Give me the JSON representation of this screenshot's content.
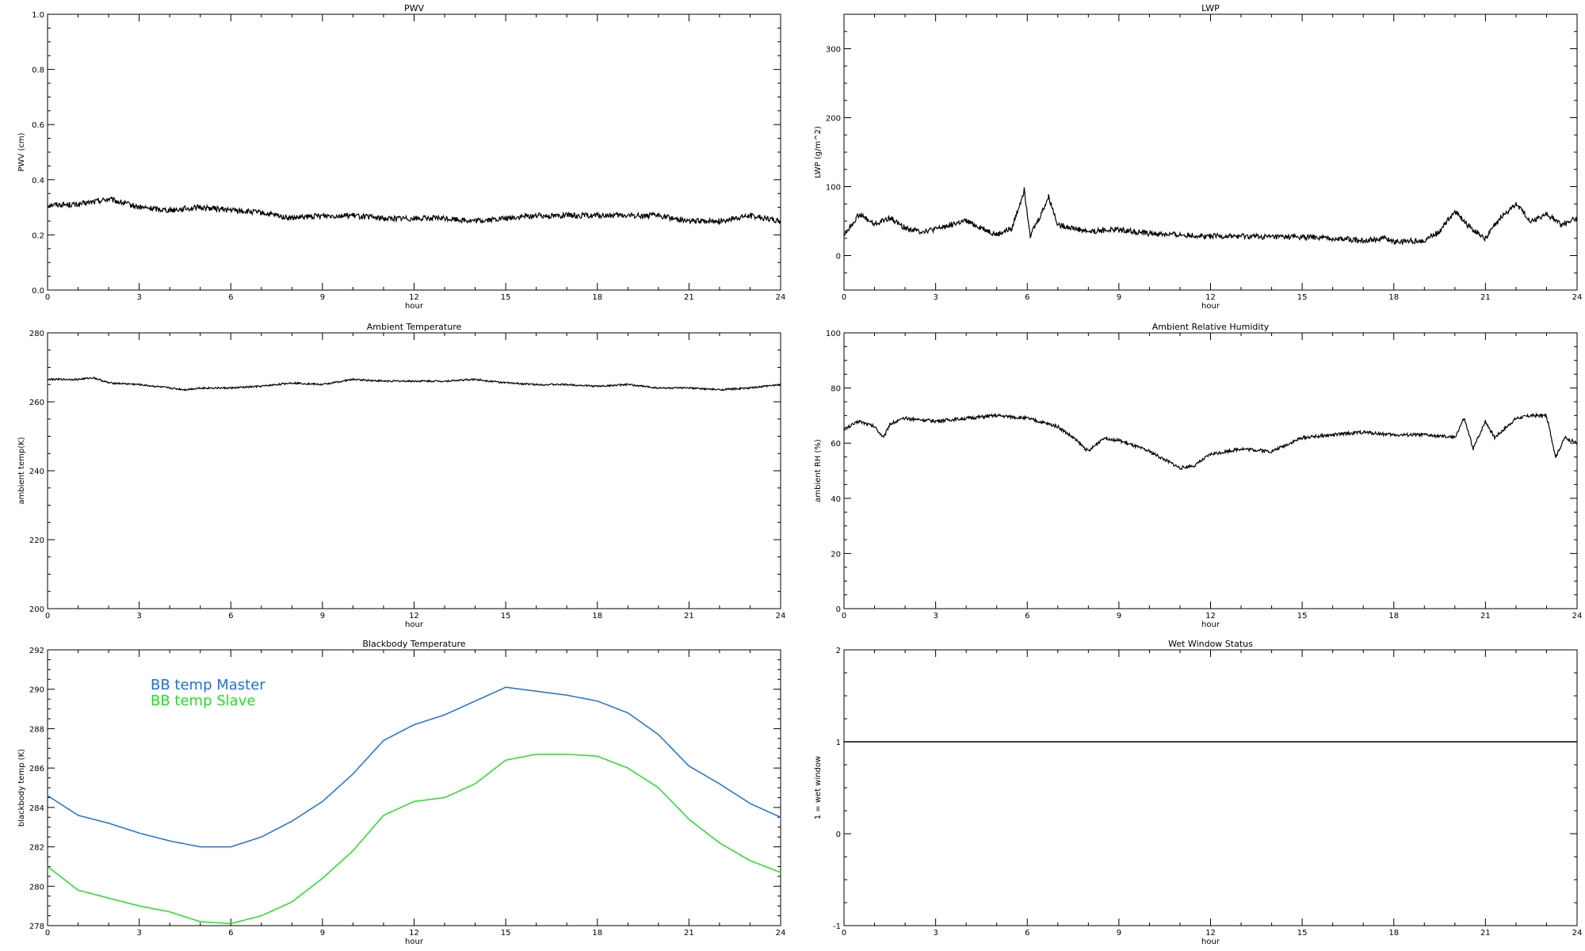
{
  "chart_data": [
    {
      "type": "line",
      "title": "PWV",
      "xlabel": "hour",
      "ylabel": "PWV (cm)",
      "xlim": [
        0,
        24
      ],
      "ylim": [
        0.0,
        1.0
      ],
      "xticks": [
        0,
        3,
        6,
        9,
        12,
        15,
        18,
        21,
        24
      ],
      "xtick_labels": [
        "0",
        "3",
        "6",
        "9",
        "12",
        "15",
        "18",
        "21",
        "24"
      ],
      "yticks": [
        0.0,
        0.2,
        0.4,
        0.6,
        0.8,
        1.0
      ],
      "ytick_labels": [
        "0.0",
        "0.2",
        "0.4",
        "0.6",
        "0.8",
        "1.0"
      ],
      "grid": false,
      "series": [
        {
          "color": "#000000",
          "noise": 0.01,
          "x": [
            0,
            1,
            2,
            3,
            4,
            5,
            6,
            7,
            8,
            9,
            10,
            11,
            12,
            13,
            14,
            15,
            16,
            17,
            18,
            19,
            20,
            21,
            22,
            23,
            24
          ],
          "y": [
            0.31,
            0.31,
            0.33,
            0.3,
            0.29,
            0.3,
            0.29,
            0.28,
            0.26,
            0.27,
            0.27,
            0.26,
            0.26,
            0.26,
            0.25,
            0.26,
            0.27,
            0.27,
            0.27,
            0.27,
            0.27,
            0.25,
            0.25,
            0.27,
            0.25
          ]
        }
      ]
    },
    {
      "type": "line",
      "title": "LWP",
      "xlabel": "hour",
      "ylabel": "LWP (g/m^2)",
      "xlim": [
        0,
        24
      ],
      "ylim": [
        -50,
        350
      ],
      "xticks": [
        0,
        3,
        6,
        9,
        12,
        15,
        18,
        21,
        24
      ],
      "xtick_labels": [
        "0",
        "3",
        "6",
        "9",
        "12",
        "15",
        "18",
        "21",
        "24"
      ],
      "yticks": [
        0,
        100,
        200,
        300
      ],
      "ytick_labels": [
        "0",
        "100",
        "200",
        "300"
      ],
      "grid": false,
      "series": [
        {
          "color": "#000000",
          "noise": 4,
          "x": [
            0,
            0.5,
            1,
            1.5,
            2,
            2.5,
            3,
            3.5,
            4,
            4.5,
            5,
            5.5,
            5.9,
            6.1,
            6.4,
            6.7,
            7,
            7.5,
            8,
            9,
            10,
            11,
            12,
            13,
            14,
            15,
            16,
            17,
            17.7,
            18,
            19,
            19.5,
            20,
            20.5,
            21,
            21.5,
            22,
            22.5,
            23,
            23.5,
            24
          ],
          "y": [
            30,
            60,
            45,
            55,
            40,
            35,
            38,
            45,
            50,
            40,
            30,
            40,
            95,
            30,
            55,
            85,
            45,
            40,
            35,
            38,
            32,
            30,
            28,
            28,
            27,
            27,
            25,
            22,
            25,
            20,
            22,
            35,
            65,
            40,
            25,
            55,
            75,
            50,
            60,
            45,
            55
          ]
        }
      ]
    },
    {
      "type": "line",
      "title": "Ambient Temperature",
      "xlabel": "hour",
      "ylabel": "ambient temp(K)",
      "xlim": [
        0,
        24
      ],
      "ylim": [
        200,
        280
      ],
      "xticks": [
        0,
        3,
        6,
        9,
        12,
        15,
        18,
        21,
        24
      ],
      "xtick_labels": [
        "0",
        "3",
        "6",
        "9",
        "12",
        "15",
        "18",
        "21",
        "24"
      ],
      "yticks": [
        200,
        220,
        240,
        260,
        280
      ],
      "ytick_labels": [
        "200",
        "220",
        "240",
        "260",
        "280"
      ],
      "grid": false,
      "series": [
        {
          "color": "#000000",
          "noise": 0.25,
          "x": [
            0,
            1,
            1.5,
            2,
            3,
            4,
            4.5,
            5,
            6,
            7,
            8,
            9,
            10,
            11,
            12,
            13,
            14,
            15,
            16,
            17,
            18,
            19,
            20,
            21,
            22,
            23,
            24
          ],
          "y": [
            266.5,
            266.5,
            267,
            265.5,
            265,
            264,
            263.5,
            264,
            264,
            264.5,
            265.5,
            265,
            266.5,
            266,
            266,
            266,
            266.5,
            265.5,
            265,
            265,
            264.5,
            265,
            264,
            264,
            263.5,
            264,
            265
          ]
        }
      ]
    },
    {
      "type": "line",
      "title": "Ambient Relative Humidity",
      "xlabel": "hour",
      "ylabel": "ambient RH (%)",
      "xlim": [
        0,
        24
      ],
      "ylim": [
        0,
        100
      ],
      "xticks": [
        0,
        3,
        6,
        9,
        12,
        15,
        18,
        21,
        24
      ],
      "xtick_labels": [
        "0",
        "3",
        "6",
        "9",
        "12",
        "15",
        "18",
        "21",
        "24"
      ],
      "yticks": [
        0,
        20,
        40,
        60,
        80,
        100
      ],
      "ytick_labels": [
        "0",
        "20",
        "40",
        "60",
        "80",
        "100"
      ],
      "grid": false,
      "series": [
        {
          "color": "#000000",
          "noise": 0.6,
          "x": [
            0,
            0.5,
            1,
            1.3,
            1.5,
            2,
            3,
            4,
            5,
            6,
            7,
            7.5,
            8,
            8.5,
            9,
            10,
            10.5,
            11,
            11.5,
            12,
            13,
            14,
            15,
            16,
            17,
            18,
            19,
            20,
            20.3,
            20.6,
            21,
            21.3,
            22,
            22.5,
            23,
            23.3,
            23.6,
            24
          ],
          "y": [
            65,
            68,
            66,
            62,
            67,
            69,
            68,
            69,
            70,
            69,
            66,
            62,
            57,
            62,
            61,
            57,
            54,
            51,
            52,
            56,
            58,
            57,
            62,
            63,
            64,
            63,
            63,
            62,
            69,
            58,
            68,
            62,
            69,
            70,
            70,
            55,
            62,
            60
          ]
        }
      ]
    },
    {
      "type": "line",
      "title": "Blackbody Temperature",
      "xlabel": "hour",
      "ylabel": "blackbody temp (K)",
      "xlim": [
        0,
        24
      ],
      "ylim": [
        278,
        292
      ],
      "xticks": [
        0,
        3,
        6,
        9,
        12,
        15,
        18,
        21,
        24
      ],
      "xtick_labels": [
        "0",
        "3",
        "6",
        "9",
        "12",
        "15",
        "18",
        "21",
        "24"
      ],
      "yticks": [
        278,
        280,
        282,
        284,
        286,
        288,
        290,
        292
      ],
      "ytick_labels": [
        "278",
        "280",
        "282",
        "284",
        "286",
        "288",
        "290",
        "292"
      ],
      "grid": false,
      "legend_position": "top-left",
      "series": [
        {
          "name": "BB temp Master",
          "color": "#1e6fe0",
          "noise": 0,
          "x": [
            0,
            1,
            2,
            3,
            4,
            5,
            6,
            7,
            8,
            9,
            10,
            11,
            12,
            13,
            14,
            15,
            16,
            17,
            18,
            19,
            20,
            21,
            22,
            23,
            24
          ],
          "y": [
            284.6,
            283.6,
            283.2,
            282.7,
            282.3,
            282.0,
            282.0,
            282.5,
            283.3,
            284.3,
            285.7,
            287.4,
            288.2,
            288.7,
            289.4,
            290.1,
            289.9,
            289.7,
            289.4,
            288.8,
            287.7,
            286.1,
            285.2,
            284.2,
            283.5
          ]
        },
        {
          "name": "BB temp Slave",
          "color": "#22e022",
          "noise": 0,
          "x": [
            0,
            1,
            2,
            3,
            4,
            5,
            6,
            7,
            8,
            9,
            10,
            11,
            12,
            13,
            14,
            15,
            16,
            17,
            18,
            19,
            20,
            21,
            22,
            23,
            24
          ],
          "y": [
            281.0,
            279.8,
            279.4,
            279.0,
            278.7,
            278.2,
            278.1,
            278.5,
            279.2,
            280.4,
            281.8,
            283.6,
            284.3,
            284.5,
            285.2,
            286.4,
            286.7,
            286.7,
            286.6,
            286.0,
            285.0,
            283.4,
            282.2,
            281.3,
            280.7
          ]
        }
      ]
    },
    {
      "type": "line",
      "title": "Wet Window Status",
      "xlabel": "hour",
      "ylabel": "1 = wet window",
      "xlim": [
        0,
        24
      ],
      "ylim": [
        -1,
        2
      ],
      "xticks": [
        0,
        3,
        6,
        9,
        12,
        15,
        18,
        21,
        24
      ],
      "xtick_labels": [
        "0",
        "3",
        "6",
        "9",
        "12",
        "15",
        "18",
        "21",
        "24"
      ],
      "yticks": [
        -1,
        0,
        1,
        2
      ],
      "ytick_labels": [
        "-1",
        "0",
        "1",
        "2"
      ],
      "grid": false,
      "series": [
        {
          "color": "#000000",
          "noise": 0,
          "x": [
            0,
            24
          ],
          "y": [
            1,
            1
          ]
        }
      ]
    }
  ]
}
